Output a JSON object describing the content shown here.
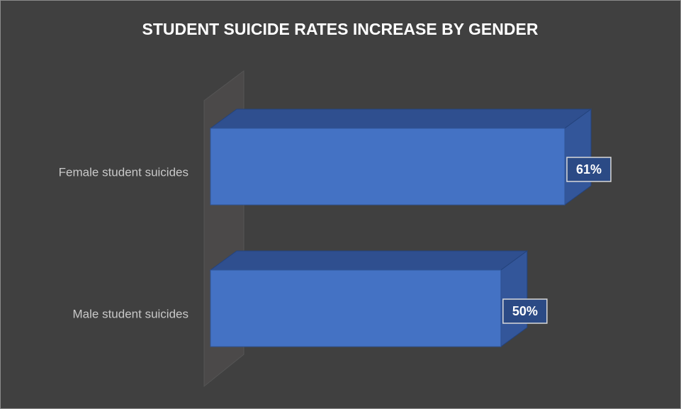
{
  "chart_data": {
    "type": "bar3d",
    "orientation": "horizontal",
    "title": "STUDENT SUICIDE RATES INCREASE BY GENDER",
    "categories": [
      "Female student suicides",
      "Male student suicides"
    ],
    "values": [
      61,
      50
    ],
    "value_labels": [
      "61%",
      "50%"
    ],
    "color": "#4472c4"
  }
}
